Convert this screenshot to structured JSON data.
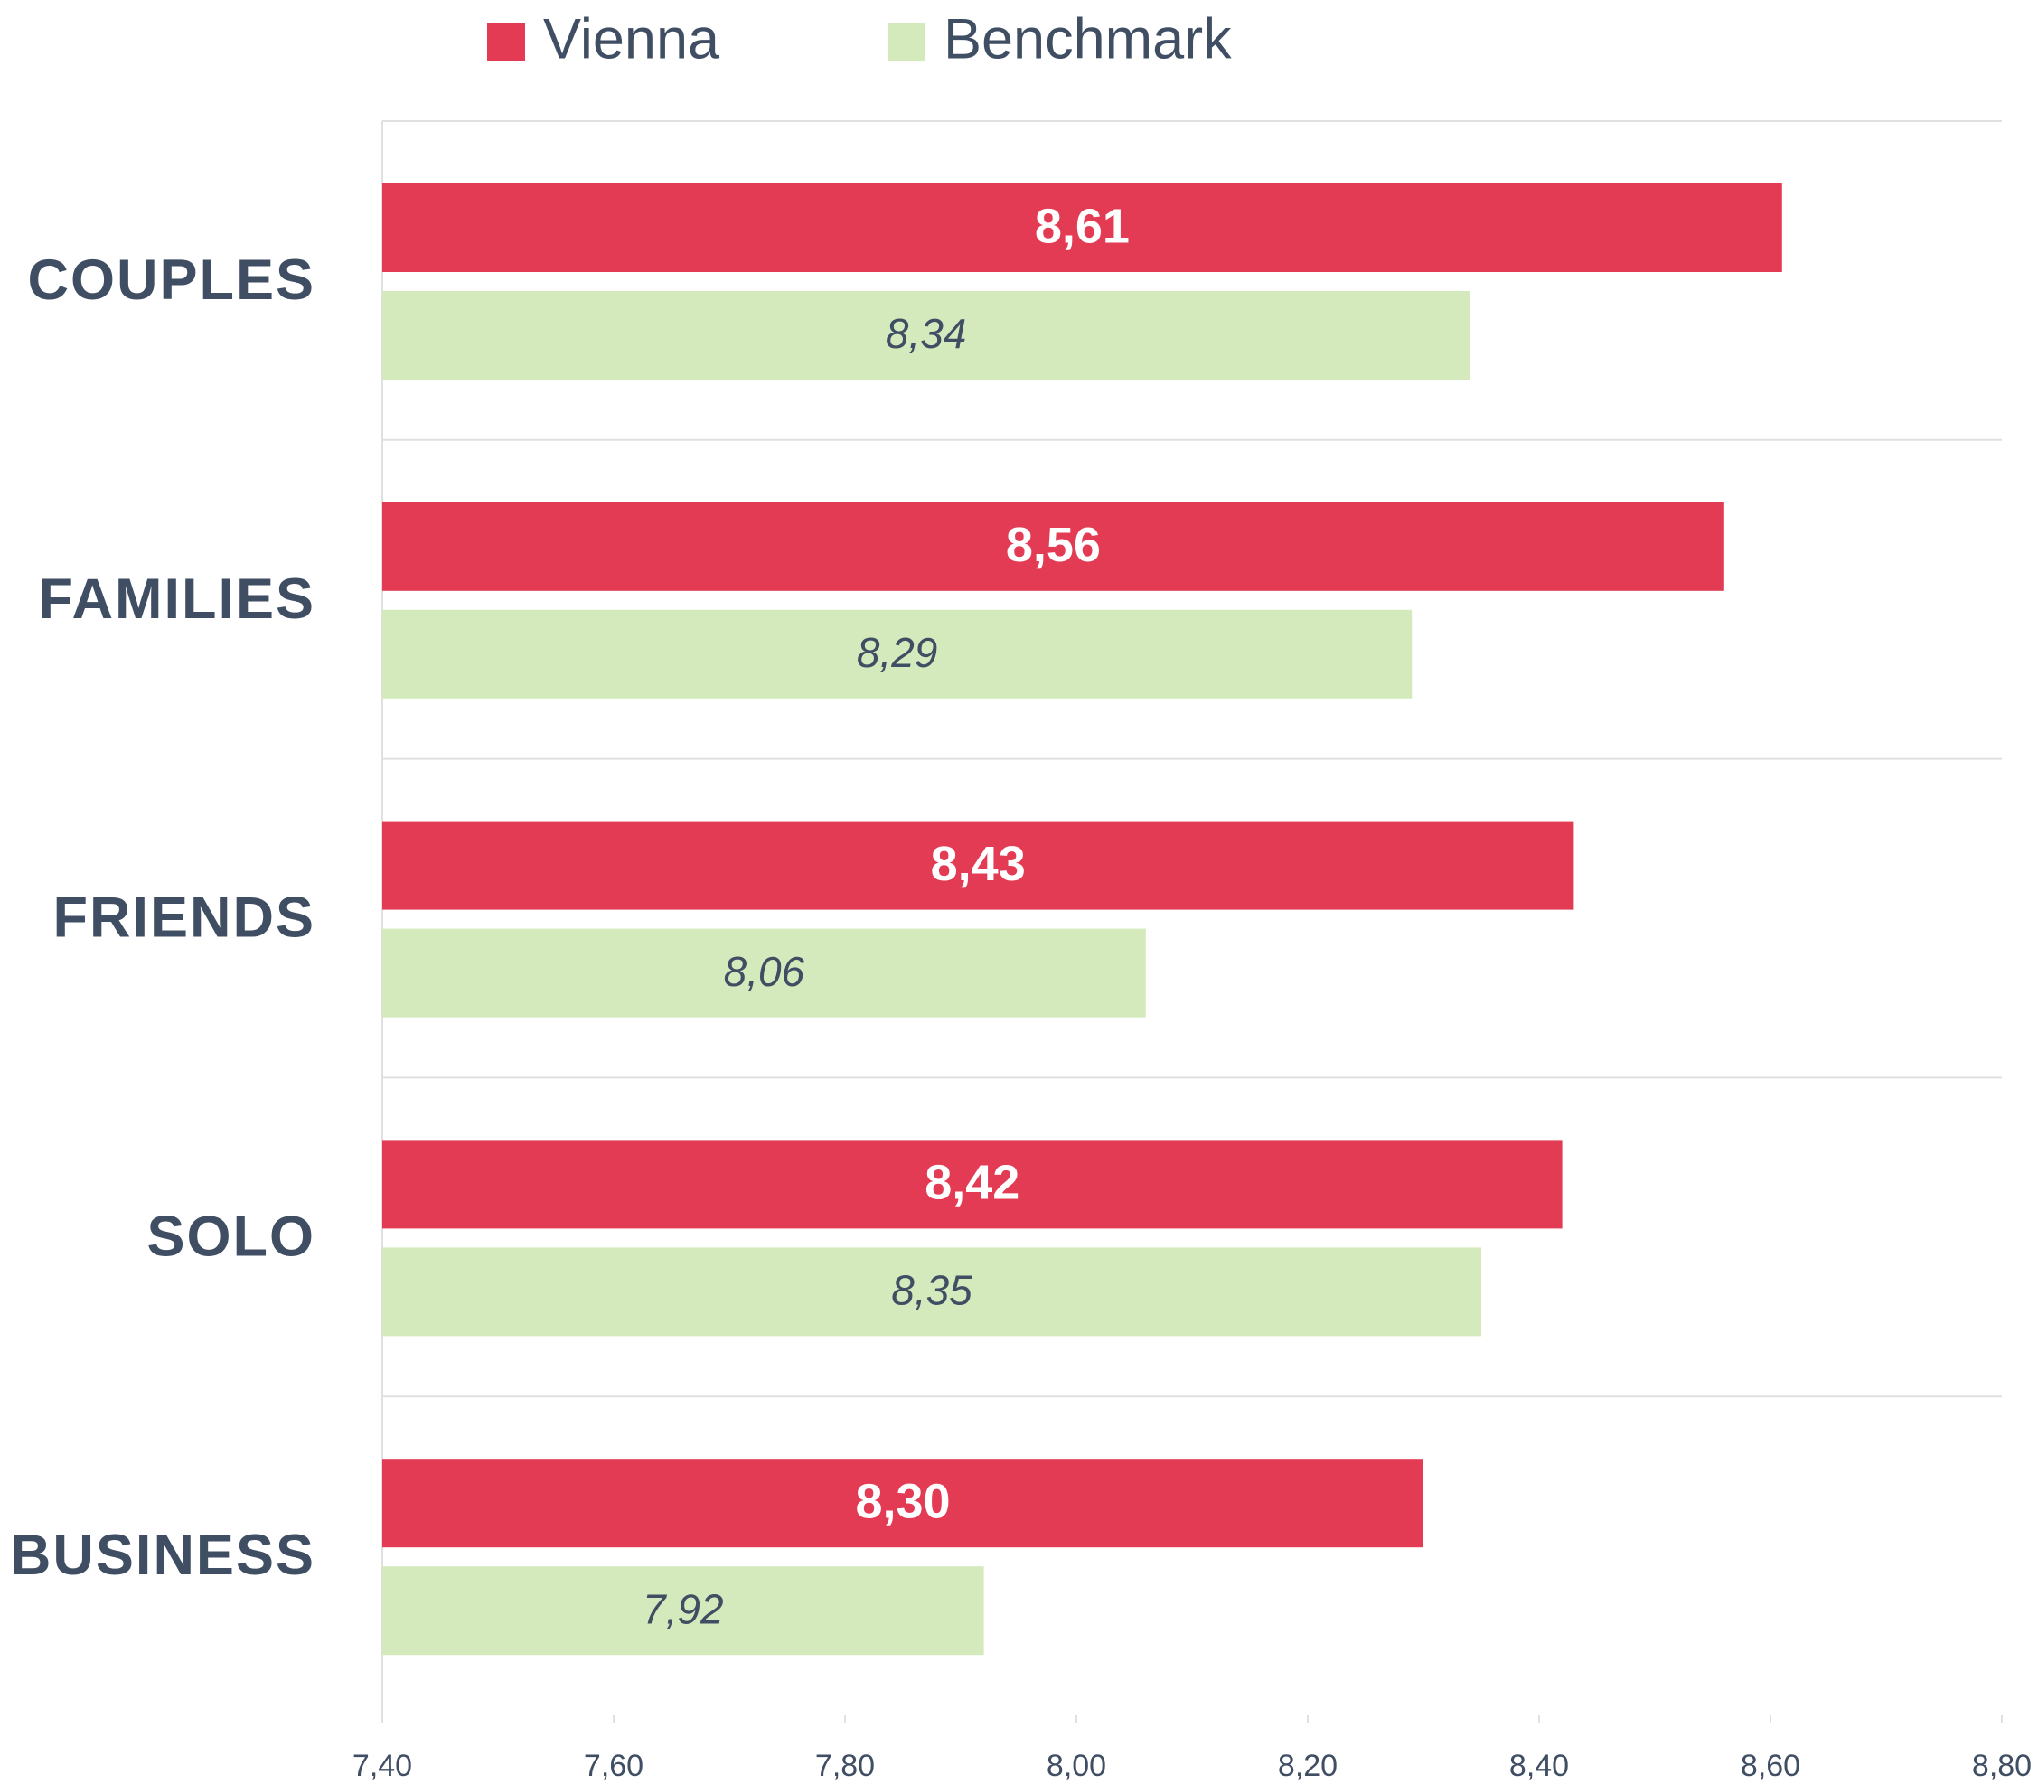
{
  "chart_data": {
    "type": "bar",
    "orientation": "horizontal",
    "categories": [
      "COUPLES",
      "FAMILIES",
      "FRIENDS",
      "SOLO",
      "BUSINESS"
    ],
    "series": [
      {
        "name": "Vienna",
        "color": "#e33b54",
        "values": [
          8.61,
          8.56,
          8.43,
          8.42,
          8.3
        ],
        "value_labels": [
          "8,61",
          "8,56",
          "8,43",
          "8,42",
          "8,30"
        ]
      },
      {
        "name": "Benchmark",
        "color": "#d4eabd",
        "values": [
          8.34,
          8.29,
          8.06,
          8.35,
          7.92
        ],
        "value_labels": [
          "8,34",
          "8,29",
          "8,06",
          "8,35",
          "7,92"
        ]
      }
    ],
    "xlim": [
      7.4,
      8.8
    ],
    "xticks": [
      {
        "value": 7.4,
        "label": "7,40"
      },
      {
        "value": 7.6,
        "label": "7,60"
      },
      {
        "value": 7.8,
        "label": "7,80"
      },
      {
        "value": 8.0,
        "label": "8,00"
      },
      {
        "value": 8.2,
        "label": "8,20"
      },
      {
        "value": 8.4,
        "label": "8,40"
      },
      {
        "value": 8.6,
        "label": "8,60"
      },
      {
        "value": 8.8,
        "label": "8,80"
      }
    ],
    "legend": "top"
  }
}
